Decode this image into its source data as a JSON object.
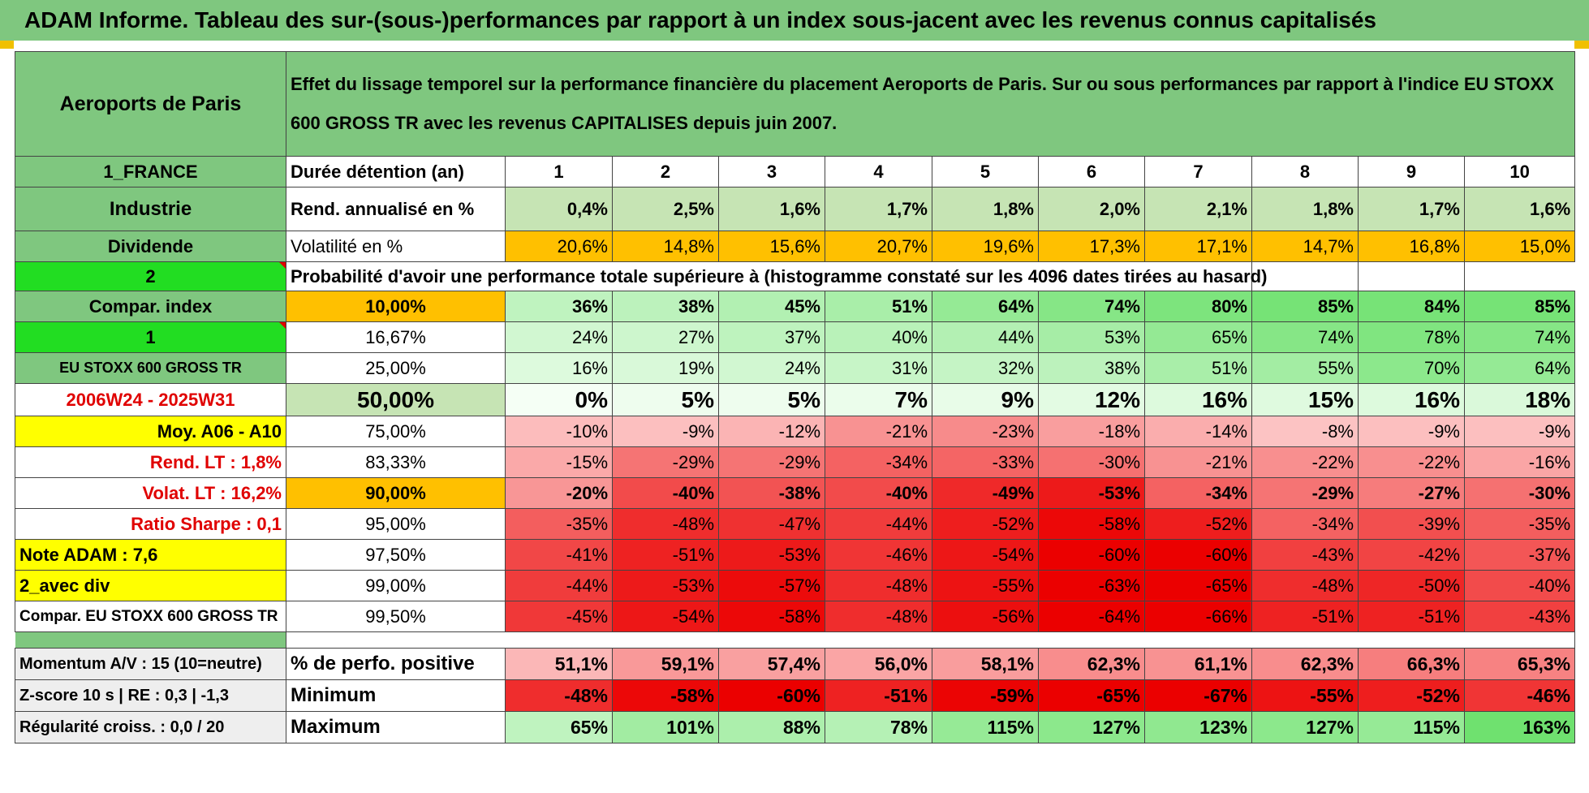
{
  "title": "ADAM Informe. Tableau des sur-(sous-)performances par rapport à un index sous-jacent avec les revenus connus capitalisés",
  "header": {
    "company": "Aeroports de Paris",
    "description": "Effet du lissage temporel sur la performance financière du placement Aeroports de Paris. Sur ou sous performances par rapport à l'indice EU STOXX 600 GROSS TR avec les revenus CAPITALISES depuis juin 2007."
  },
  "side": {
    "country": "1_FRANCE",
    "sector": "Industrie",
    "dividend": "Dividende",
    "num2": "2",
    "compar_index": "Compar. index",
    "num1": "1",
    "index_name": "EU STOXX 600 GROSS TR",
    "period": "2006W24 - 2025W31",
    "moy": "Moy. A06 - A10",
    "rend_lt": "Rend. LT :    1,8%",
    "volat_lt": "Volat. LT :    16,2%",
    "sharpe": "Ratio Sharpe :     0,1",
    "note": "Note ADAM : 7,6",
    "avec_div": "2_avec div",
    "compar_full": "Compar. EU STOXX 600 GROSS TR"
  },
  "years_label": "Durée détention (an)",
  "years": [
    "1",
    "2",
    "3",
    "4",
    "5",
    "6",
    "7",
    "8",
    "9",
    "10"
  ],
  "rend_label": "Rend. annualisé en %",
  "rend": [
    "0,4%",
    "2,5%",
    "1,6%",
    "1,7%",
    "1,8%",
    "2,0%",
    "2,1%",
    "1,8%",
    "1,7%",
    "1,6%"
  ],
  "vol_label": "Volatilité en %",
  "vol": [
    "20,6%",
    "14,8%",
    "15,6%",
    "20,7%",
    "19,6%",
    "17,3%",
    "17,1%",
    "14,7%",
    "16,8%",
    "15,0%"
  ],
  "prob_label": "Probabilité d'avoir une performance totale supérieure à (histogramme constaté sur les 4096 dates tirées au hasard)",
  "prob_rows": [
    {
      "pct": "10,00%",
      "vals": [
        "36%",
        "38%",
        "45%",
        "51%",
        "64%",
        "74%",
        "80%",
        "85%",
        "84%",
        "85%"
      ]
    },
    {
      "pct": "16,67%",
      "vals": [
        "24%",
        "27%",
        "37%",
        "40%",
        "44%",
        "53%",
        "65%",
        "74%",
        "78%",
        "74%"
      ]
    },
    {
      "pct": "25,00%",
      "vals": [
        "16%",
        "19%",
        "24%",
        "31%",
        "32%",
        "38%",
        "51%",
        "55%",
        "70%",
        "64%"
      ]
    },
    {
      "pct": "50,00%",
      "vals": [
        "0%",
        "5%",
        "5%",
        "7%",
        "9%",
        "12%",
        "16%",
        "15%",
        "16%",
        "18%"
      ]
    },
    {
      "pct": "75,00%",
      "vals": [
        "-10%",
        "-9%",
        "-12%",
        "-21%",
        "-23%",
        "-18%",
        "-14%",
        "-8%",
        "-9%",
        "-9%"
      ]
    },
    {
      "pct": "83,33%",
      "vals": [
        "-15%",
        "-29%",
        "-29%",
        "-34%",
        "-33%",
        "-30%",
        "-21%",
        "-22%",
        "-22%",
        "-16%"
      ]
    },
    {
      "pct": "90,00%",
      "vals": [
        "-20%",
        "-40%",
        "-38%",
        "-40%",
        "-49%",
        "-53%",
        "-34%",
        "-29%",
        "-27%",
        "-30%"
      ]
    },
    {
      "pct": "95,00%",
      "vals": [
        "-35%",
        "-48%",
        "-47%",
        "-44%",
        "-52%",
        "-58%",
        "-52%",
        "-34%",
        "-39%",
        "-35%"
      ]
    },
    {
      "pct": "97,50%",
      "vals": [
        "-41%",
        "-51%",
        "-53%",
        "-46%",
        "-54%",
        "-60%",
        "-60%",
        "-43%",
        "-42%",
        "-37%"
      ]
    },
    {
      "pct": "99,00%",
      "vals": [
        "-44%",
        "-53%",
        "-57%",
        "-48%",
        "-55%",
        "-63%",
        "-65%",
        "-48%",
        "-50%",
        "-40%"
      ]
    },
    {
      "pct": "99,50%",
      "vals": [
        "-45%",
        "-54%",
        "-58%",
        "-48%",
        "-56%",
        "-64%",
        "-66%",
        "-51%",
        "-51%",
        "-43%"
      ]
    }
  ],
  "bottom": {
    "momentum": "Momentum A/V : 15 (10=neutre)",
    "zscore": "Z-score 10 s | RE : 0,3 | -1,3",
    "regularite": "Régularité croiss. : 0,0 / 20",
    "pos_label": "% de perfo. positive",
    "pos": [
      "51,1%",
      "59,1%",
      "57,4%",
      "56,0%",
      "58,1%",
      "62,3%",
      "61,1%",
      "62,3%",
      "66,3%",
      "65,3%"
    ],
    "min_label": "Minimum",
    "min": [
      "-48%",
      "-58%",
      "-60%",
      "-51%",
      "-59%",
      "-65%",
      "-67%",
      "-55%",
      "-52%",
      "-46%"
    ],
    "max_label": "Maximum",
    "max": [
      "65%",
      "101%",
      "88%",
      "78%",
      "115%",
      "127%",
      "123%",
      "127%",
      "115%",
      "163%"
    ]
  },
  "colors": {
    "header_green": "#7fc77f",
    "light_green": "#c6e4b4",
    "bright_green": "#22dd22",
    "yellow": "#ffff00",
    "orange": "#ffc000",
    "red_text": "#e00000"
  }
}
